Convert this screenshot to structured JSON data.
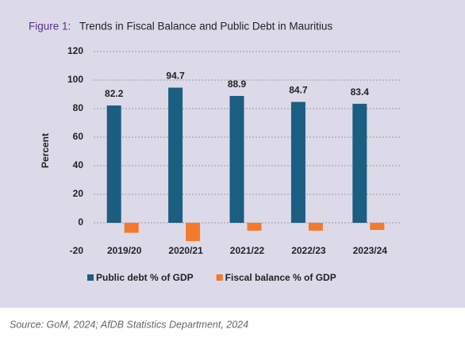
{
  "chart_data": {
    "type": "bar",
    "figure_label": "Figure 1:",
    "title": "Trends in Fiscal Balance and Public Debt in Mauritius",
    "y_label": "Percent",
    "categories": [
      "2019/20",
      "2020/21",
      "2021/22",
      "2022/23",
      "2023/24"
    ],
    "series": [
      {
        "name": "Public debt % of GDP",
        "color": "#1b5e82",
        "values": [
          82.2,
          94.7,
          88.9,
          84.7,
          83.4
        ],
        "show_labels": true
      },
      {
        "name": "Fiscal balance % of GDP",
        "color": "#f47a2b",
        "values": [
          -7,
          -12.8,
          -5.5,
          -5.5,
          -5
        ],
        "show_labels": false
      }
    ],
    "ylim": [
      -20,
      120
    ],
    "yticks": [
      -20,
      0,
      20,
      40,
      60,
      80,
      100,
      120
    ],
    "grid": true,
    "legend": "bottom",
    "source": "Source: GoM, 2024; AfDB Statistics Department, 2024"
  }
}
